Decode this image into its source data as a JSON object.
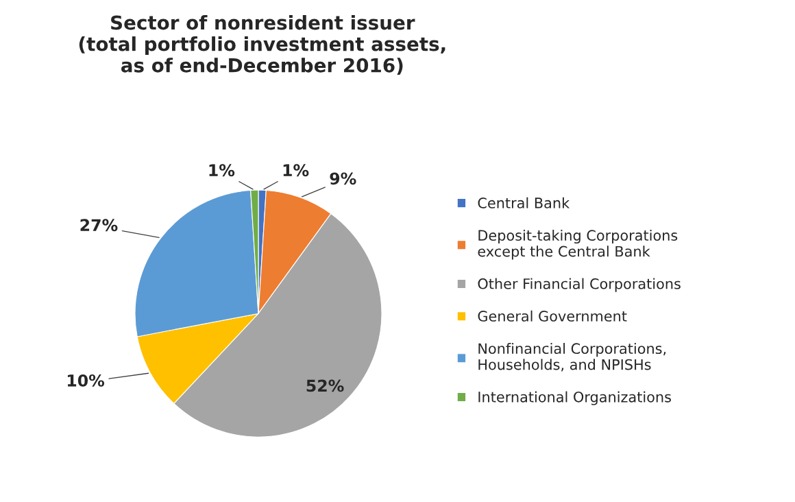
{
  "chart_data": {
    "type": "pie",
    "title": "Sector of nonresident issuer\n(total portfolio investment assets,\nas of end-December 2016)",
    "categories": [
      "Central Bank",
      "Deposit-taking Corporations\nexcept the Central Bank",
      "Other Financial Corporations",
      "General Government",
      "Nonfinancial Corporations,\nHouseholds, and NPISHs",
      "International Organizations"
    ],
    "values": [
      1,
      9,
      52,
      10,
      27,
      1
    ],
    "value_labels": [
      "1%",
      "9%",
      "52%",
      "10%",
      "27%",
      "1%"
    ],
    "colors": [
      "#4472c4",
      "#ed7d31",
      "#a5a5a5",
      "#ffc000",
      "#5b9bd5",
      "#70ad47"
    ],
    "legend": "right"
  }
}
